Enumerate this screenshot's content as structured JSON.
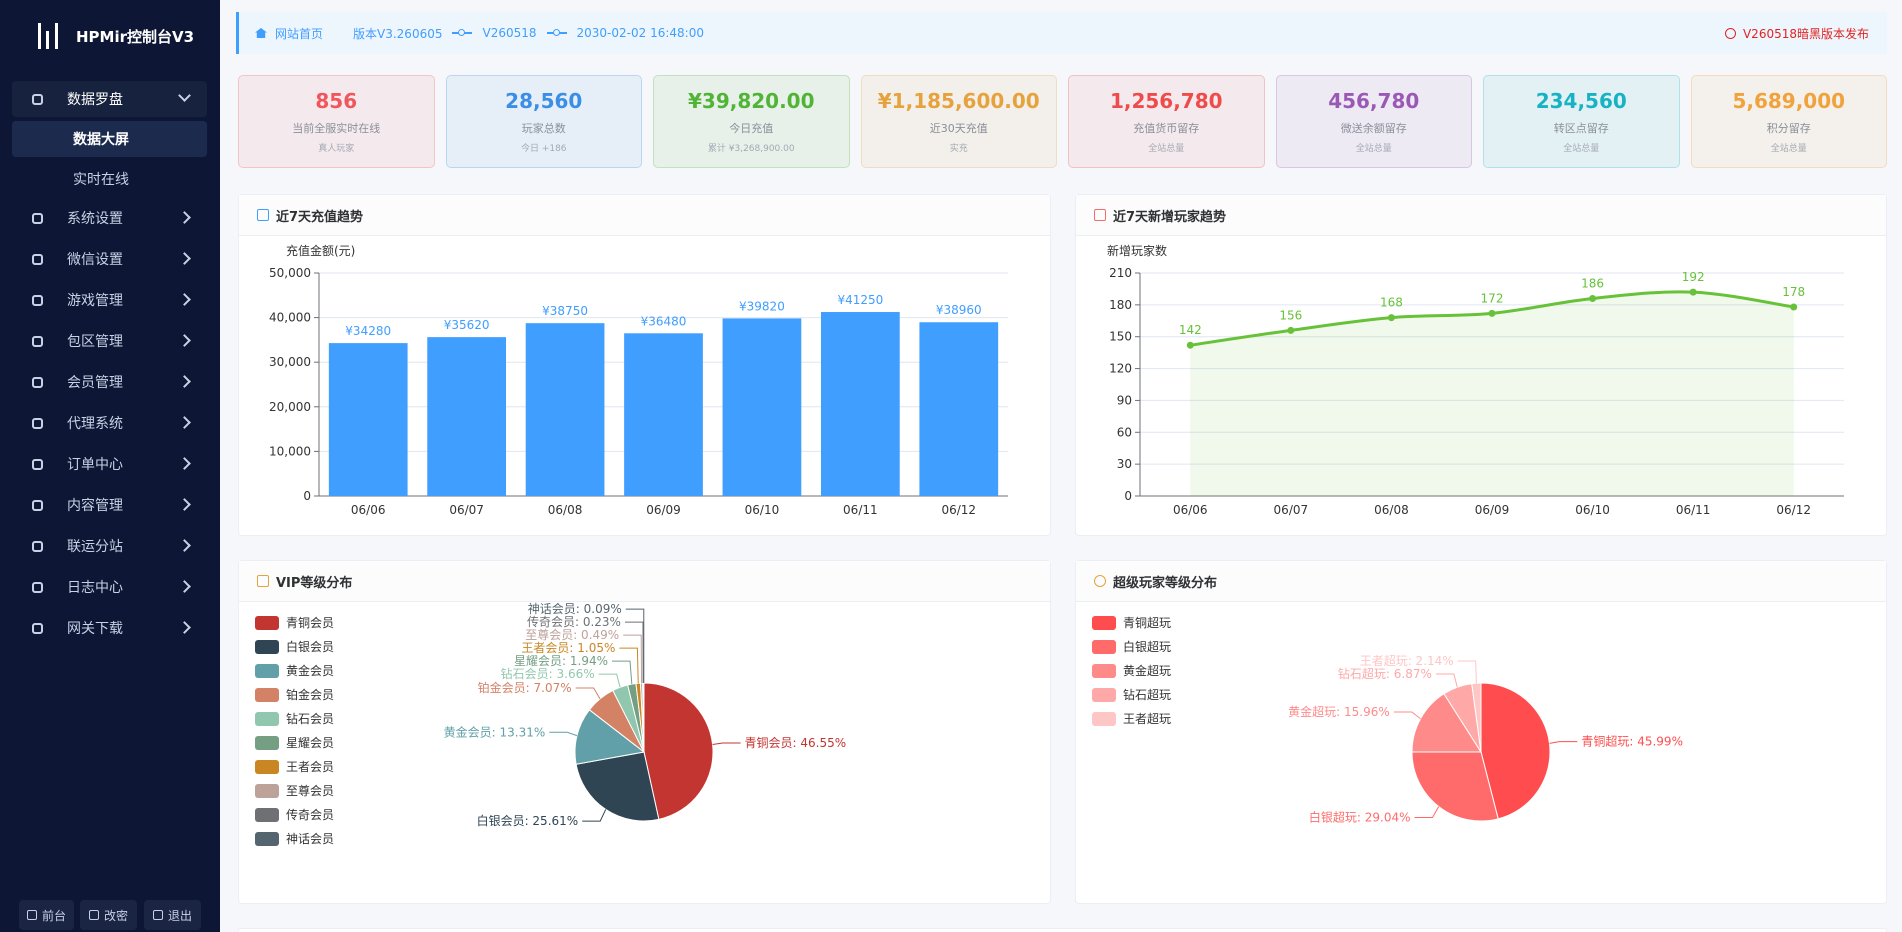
{
  "sidebar": {
    "brand": "HPMir控制台V3",
    "group": "数据罗盘",
    "submenu": [
      "数据大屏",
      "实时在线"
    ],
    "menu": [
      "系统设置",
      "微信设置",
      "游戏管理",
      "包区管理",
      "会员管理",
      "代理系统",
      "订单中心",
      "内容管理",
      "联运分站",
      "日志中心",
      "网关下载"
    ],
    "footer": [
      "前台",
      "改密",
      "退出"
    ]
  },
  "topbar": {
    "home": "网站首页",
    "version": "版本V3.260605",
    "build": "V260518",
    "datetime": "2030-02-02 16:48:00",
    "notice": "V260518暗黑版本发布"
  },
  "stats": [
    {
      "value": "856",
      "label": "当前全服实时在线",
      "note": "真人玩家",
      "color": "#f0565c"
    },
    {
      "value": "28,560",
      "label": "玩家总数",
      "note": "今日 +186",
      "color": "#3a8ee6"
    },
    {
      "value": "¥39,820.00",
      "label": "今日充值",
      "note": "累计 ¥3,268,900.00",
      "color": "#52b436"
    },
    {
      "value": "¥1,185,600.00",
      "label": "近30天充值",
      "note": "实充",
      "color": "#e6a23c"
    },
    {
      "value": "1,256,780",
      "label": "充值货币留存",
      "note": "全站总量",
      "color": "#f04b4b"
    },
    {
      "value": "456,780",
      "label": "微送余额留存",
      "note": "全站总量",
      "color": "#9b59b6"
    },
    {
      "value": "234,560",
      "label": "转区点留存",
      "note": "全站总量",
      "color": "#17b3c4"
    },
    {
      "value": "5,689,000",
      "label": "积分留存",
      "note": "全站总量",
      "color": "#f0a23c"
    }
  ],
  "chart_data": [
    {
      "type": "bar",
      "title": "近7天充值趋势",
      "y_label": "充值金额(元)",
      "categories": [
        "06/06",
        "06/07",
        "06/08",
        "06/09",
        "06/10",
        "06/11",
        "06/12"
      ],
      "values": [
        34280,
        35620,
        38750,
        36480,
        39820,
        41250,
        38960
      ],
      "value_labels": [
        "¥34280",
        "¥35620",
        "¥38750",
        "¥36480",
        "¥39820",
        "¥41250",
        "¥38960"
      ],
      "color": "#409eff",
      "ylim": [
        0,
        50000
      ],
      "yticks": [
        0,
        {
          "value": 10000,
          "label": "10,000"
        },
        {
          "value": 20000,
          "label": "20,000"
        },
        {
          "value": 30000,
          "label": "30,000"
        },
        {
          "value": 40000,
          "label": "40,000"
        },
        {
          "value": 50000,
          "label": "50,000"
        }
      ],
      "grid": true
    },
    {
      "type": "line",
      "title": "近7天新增玩家趋势",
      "y_label": "新增玩家数",
      "categories": [
        "06/06",
        "06/07",
        "06/08",
        "06/09",
        "06/10",
        "06/11",
        "06/12"
      ],
      "values": [
        142,
        156,
        168,
        172,
        186,
        192,
        178
      ],
      "color": "#67c23a",
      "ylim": [
        0,
        210
      ],
      "yticks": [
        0,
        30,
        60,
        90,
        120,
        150,
        180,
        210
      ],
      "grid": true,
      "smooth": true,
      "area": true
    },
    {
      "type": "pie",
      "title": "VIP等级分布",
      "categories": [
        "青铜会员",
        "白银会员",
        "黄金会员",
        "铂金会员",
        "钻石会员",
        "星耀会员",
        "王者会员",
        "至尊会员",
        "传奇会员",
        "神话会员"
      ],
      "values": [
        46.55,
        25.61,
        13.31,
        7.07,
        3.66,
        1.94,
        1.05,
        0.49,
        0.23,
        0.09
      ],
      "value_labels": [
        "青铜会员: 46.55%",
        "白银会员: 25.61%",
        "黄金会员: 13.31%",
        "铂金会员: 7.07%",
        "钻石会员: 3.66%",
        "星耀会员: 1.94%",
        "王者会员: 1.05%",
        "至尊会员: 0.49%",
        "传奇会员: 0.23%",
        "神话会员: 0.09%"
      ],
      "colors": [
        "#c23531",
        "#2f4554",
        "#61a0a8",
        "#d48265",
        "#91c7ae",
        "#749f83",
        "#ca8622",
        "#bda29a",
        "#6e7074",
        "#546570"
      ],
      "legend": "top-left"
    },
    {
      "type": "pie",
      "title": "超级玩家等级分布",
      "categories": [
        "青铜超玩",
        "白银超玩",
        "黄金超玩",
        "钻石超玩",
        "王者超玩"
      ],
      "values": [
        45.99,
        29.04,
        15.96,
        6.87,
        2.14
      ],
      "value_labels": [
        "青铜超玩: 45.99%",
        "白银超玩: 29.04%",
        "黄金超玩: 15.96%",
        "钻石超玩: 6.87%",
        "王者超玩: 2.14%"
      ],
      "colors": [
        "#ff4d4f",
        "#ff6b6b",
        "#ff8a8a",
        "#ffa8a8",
        "#ffc6c6"
      ],
      "legend": "top-left"
    }
  ]
}
